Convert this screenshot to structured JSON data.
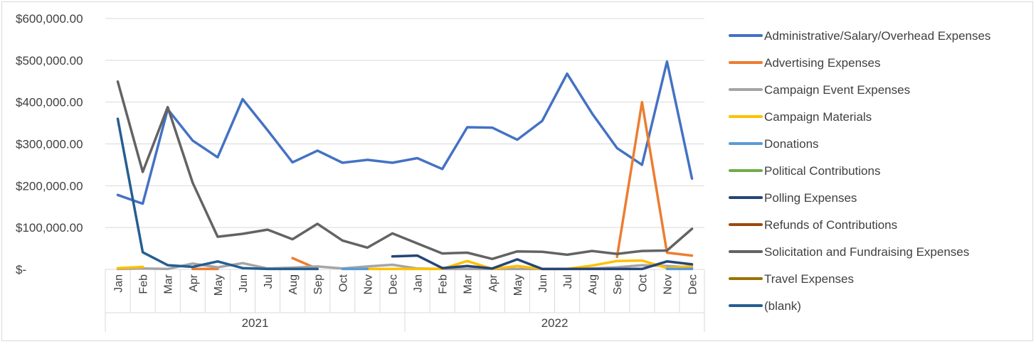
{
  "chart_data": {
    "type": "line",
    "title": "",
    "xlabel": "",
    "ylabel": "",
    "ylim": [
      0,
      600000
    ],
    "yticks": [
      "$600,000.00",
      "$500,000.00",
      "$400,000.00",
      "$300,000.00",
      "$200,000.00",
      "$100,000.00",
      "$-"
    ],
    "ytick_values": [
      600000,
      500000,
      400000,
      300000,
      200000,
      100000,
      0
    ],
    "grid": true,
    "legend_position": "right",
    "categories": [
      "Jan",
      "Feb",
      "Mar",
      "Apr",
      "May",
      "Jun",
      "Jul",
      "Aug",
      "Sep",
      "Oct",
      "Nov",
      "Dec",
      "Jan",
      "Feb",
      "Mar",
      "Apr",
      "May",
      "Jun",
      "Jul",
      "Aug",
      "Sep",
      "Oct",
      "Nov",
      "Dec"
    ],
    "groups": [
      {
        "label": "2021",
        "start": 0,
        "end": 11
      },
      {
        "label": "2022",
        "start": 12,
        "end": 23
      }
    ],
    "series": [
      {
        "name": "Administrative/Salary/Overhead Expenses",
        "color": "#4472c4",
        "values": [
          178000,
          157000,
          383000,
          308000,
          268000,
          407000,
          333000,
          256000,
          284000,
          255000,
          262000,
          255000,
          266000,
          240000,
          340000,
          339000,
          310000,
          355000,
          468000,
          373000,
          290000,
          250000,
          497000,
          217000
        ]
      },
      {
        "name": "Advertising Expenses",
        "color": "#ed7d31",
        "values": [
          null,
          null,
          null,
          1000,
          1000,
          null,
          null,
          27000,
          1000,
          null,
          null,
          null,
          null,
          null,
          null,
          null,
          null,
          null,
          null,
          null,
          30000,
          400000,
          40000,
          33000
        ]
      },
      {
        "name": "Campaign Event Expenses",
        "color": "#a5a5a5",
        "values": [
          1000,
          2000,
          1000,
          14000,
          5000,
          15000,
          2000,
          4000,
          7000,
          2000,
          7000,
          11000,
          2000,
          1000,
          1000,
          1000,
          1000,
          1000,
          1000,
          2000,
          5000,
          10000,
          8000,
          5000
        ]
      },
      {
        "name": "Campaign Materials",
        "color": "#ffc000",
        "values": [
          3000,
          6000,
          null,
          null,
          null,
          null,
          null,
          null,
          null,
          null,
          1000,
          1000,
          1000,
          1000,
          20000,
          1000,
          8000,
          1000,
          1000,
          9000,
          20000,
          21000,
          3000,
          8000
        ]
      },
      {
        "name": "Donations",
        "color": "#5b9bd5",
        "values": [
          null,
          null,
          null,
          null,
          null,
          null,
          null,
          null,
          null,
          1000,
          1000,
          null,
          null,
          null,
          null,
          null,
          null,
          null,
          null,
          null,
          null,
          null,
          1000,
          1000
        ]
      },
      {
        "name": "Political Contributions",
        "color": "#70ad47",
        "values": [
          null,
          null,
          null,
          null,
          null,
          null,
          null,
          null,
          null,
          null,
          null,
          null,
          null,
          null,
          null,
          null,
          null,
          null,
          null,
          null,
          null,
          null,
          null,
          null
        ]
      },
      {
        "name": "Polling Expenses",
        "color": "#264478",
        "values": [
          null,
          null,
          null,
          null,
          null,
          null,
          null,
          null,
          null,
          null,
          null,
          31000,
          33000,
          3000,
          8000,
          2000,
          24000,
          1000,
          1000,
          1000,
          1000,
          1000,
          19000,
          12000
        ]
      },
      {
        "name": "Refunds of Contributions",
        "color": "#9e480e",
        "values": [
          null,
          null,
          null,
          null,
          null,
          null,
          null,
          null,
          null,
          null,
          null,
          null,
          null,
          null,
          null,
          null,
          null,
          null,
          null,
          null,
          null,
          null,
          null,
          null
        ]
      },
      {
        "name": "Solicitation and Fundraising Expenses",
        "color": "#636363",
        "values": [
          449000,
          233000,
          388000,
          207000,
          78000,
          85000,
          95000,
          72000,
          109000,
          69000,
          52000,
          86000,
          62000,
          38000,
          40000,
          25000,
          43000,
          42000,
          35000,
          44000,
          37000,
          44000,
          45000,
          97000
        ]
      },
      {
        "name": "Travel Expenses",
        "color": "#997300",
        "values": [
          null,
          null,
          null,
          null,
          null,
          null,
          null,
          null,
          null,
          null,
          null,
          null,
          null,
          null,
          null,
          null,
          null,
          null,
          null,
          null,
          null,
          null,
          null,
          null
        ]
      },
      {
        "name": "(blank)",
        "color": "#255e91",
        "values": [
          360000,
          41000,
          10000,
          6000,
          19000,
          3000,
          1000,
          1000,
          1000,
          null,
          null,
          null,
          null,
          null,
          null,
          null,
          null,
          null,
          null,
          null,
          null,
          null,
          null,
          null
        ]
      }
    ]
  }
}
